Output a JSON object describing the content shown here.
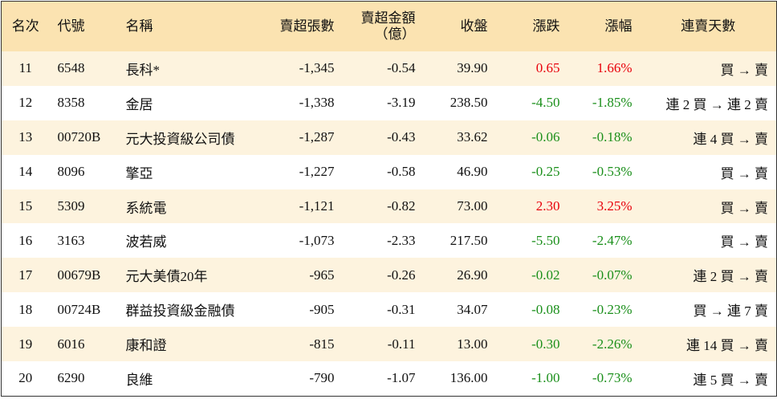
{
  "table": {
    "header": [
      "名次",
      "代號",
      "名稱",
      "賣超張數",
      "賣超金額\n（億）",
      "收盤",
      "漲跌",
      "漲幅",
      "連賣天數"
    ],
    "rows": [
      [
        "11",
        "6548",
        "長科*",
        "-1,345",
        "-0.54",
        "39.90",
        "0.65",
        "1.66%",
        "買 → 賣"
      ],
      [
        "12",
        "8358",
        "金居",
        "-1,338",
        "-3.19",
        "238.50",
        "-4.50",
        "-1.85%",
        "連 2 買 → 連 2 賣"
      ],
      [
        "13",
        "00720B",
        "元大投資級公司債",
        "-1,287",
        "-0.43",
        "33.62",
        "-0.06",
        "-0.18%",
        "連 4 買 → 賣"
      ],
      [
        "14",
        "8096",
        "擎亞",
        "-1,227",
        "-0.58",
        "46.90",
        "-0.25",
        "-0.53%",
        "買 → 賣"
      ],
      [
        "15",
        "5309",
        "系統電",
        "-1,121",
        "-0.82",
        "73.00",
        "2.30",
        "3.25%",
        "買 → 賣"
      ],
      [
        "16",
        "3163",
        "波若威",
        "-1,073",
        "-2.33",
        "217.50",
        "-5.50",
        "-2.47%",
        "買 → 賣"
      ],
      [
        "17",
        "00679B",
        "元大美債20年",
        "-965",
        "-0.26",
        "26.90",
        "-0.02",
        "-0.07%",
        "連 2 買 → 賣"
      ],
      [
        "18",
        "00724B",
        "群益投資級金融債",
        "-905",
        "-0.31",
        "34.07",
        "-0.08",
        "-0.23%",
        "買 → 連 7 賣"
      ],
      [
        "19",
        "6016",
        "康和證",
        "-815",
        "-0.11",
        "13.00",
        "-0.30",
        "-2.26%",
        "連 14 買 → 賣"
      ],
      [
        "20",
        "6290",
        "良維",
        "-790",
        "-1.07",
        "136.00",
        "-1.00",
        "-0.73%",
        "連 5 買 → 賣"
      ]
    ]
  }
}
